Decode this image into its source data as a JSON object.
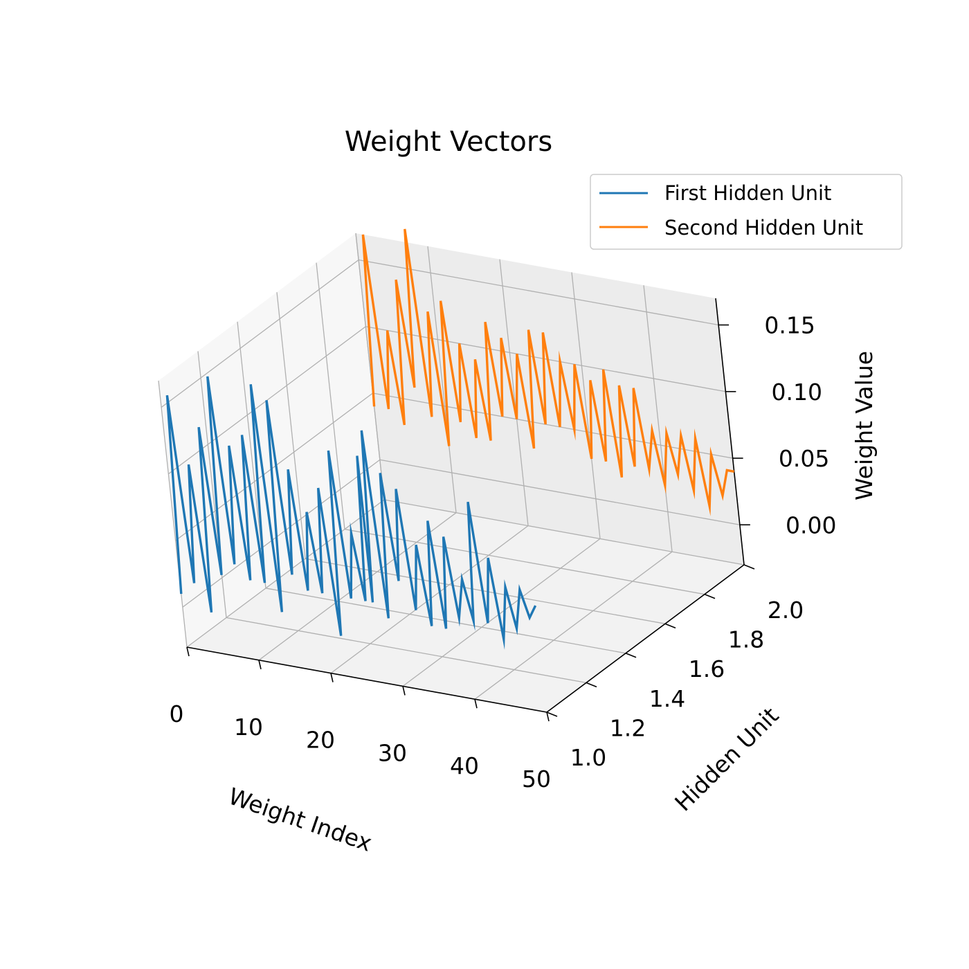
{
  "chart_data": {
    "type": "line",
    "projection": "3d",
    "title": "Weight Vectors",
    "xlabel": "Weight Index",
    "ylabel": "Hidden Unit",
    "zlabel": "Weight Value",
    "xlim": [
      0,
      50
    ],
    "ylim": [
      1.0,
      2.0
    ],
    "zlim": [
      -0.03,
      0.17
    ],
    "x_ticks": [
      "0",
      "10",
      "20",
      "30",
      "40",
      "50"
    ],
    "y_ticks": [
      "1.0",
      "1.2",
      "1.4",
      "1.6",
      "1.8",
      "2.0"
    ],
    "z_ticks": [
      "0.00",
      "0.05",
      "0.10",
      "0.15"
    ],
    "grid": true,
    "legend_position": "top-right",
    "series": [
      {
        "name": "First Hidden Unit",
        "color": "#1f77b4",
        "hidden_unit": 1.0,
        "x": [
          0,
          1,
          2,
          3,
          4,
          5,
          6,
          7,
          8,
          9,
          10,
          11,
          12,
          13,
          14,
          15,
          16,
          17,
          18,
          19,
          20,
          21,
          22,
          23,
          24,
          25,
          26,
          27,
          27,
          28,
          29,
          30,
          31,
          32,
          33,
          34,
          35,
          36,
          37,
          38,
          39,
          40,
          41,
          42,
          43,
          44,
          45,
          46,
          47,
          48,
          49,
          50
        ],
        "values": [
          0.01,
          0.16,
          0.02,
          0.11,
          0.0,
          0.14,
          0.03,
          0.18,
          0.04,
          0.13,
          0.03,
          0.14,
          0.03,
          0.18,
          0.01,
          0.17,
          0.04,
          0.12,
          0.03,
          0.09,
          0.03,
          0.11,
          0.0,
          0.14,
          0.03,
          0.08,
          0.03,
          0.14,
          0.03,
          0.16,
          0.02,
          0.13,
          0.05,
          0.12,
          0.03,
          0.08,
          0.02,
          0.1,
          0.02,
          0.09,
          0.03,
          0.06,
          0.03,
          0.12,
          0.03,
          0.08,
          0.02,
          0.06,
          0.03,
          0.06,
          0.04,
          0.05
        ]
      },
      {
        "name": "Second Hidden Unit",
        "color": "#ff7f0e",
        "hidden_unit": 2.0,
        "x": [
          0,
          1,
          2,
          3,
          4,
          5,
          6,
          7,
          8,
          9,
          10,
          11,
          12,
          13,
          14,
          15,
          16,
          17,
          18,
          19,
          20,
          21,
          22,
          23,
          24,
          25,
          26,
          27,
          28,
          29,
          30,
          31,
          32,
          33,
          34,
          35,
          36,
          37,
          38,
          39,
          40,
          41,
          42,
          43,
          44,
          45,
          46,
          47,
          48,
          49,
          50
        ],
        "values": [
          0.04,
          0.17,
          0.04,
          0.1,
          0.03,
          0.14,
          0.06,
          0.18,
          0.04,
          0.12,
          0.02,
          0.13,
          0.04,
          0.1,
          0.03,
          0.09,
          0.03,
          0.12,
          0.05,
          0.11,
          0.05,
          0.1,
          0.03,
          0.12,
          0.05,
          0.12,
          0.05,
          0.1,
          0.05,
          0.1,
          0.03,
          0.09,
          0.03,
          0.1,
          0.02,
          0.09,
          0.03,
          0.09,
          0.03,
          0.06,
          0.02,
          0.06,
          0.03,
          0.06,
          0.02,
          0.06,
          0.01,
          0.05,
          0.02,
          0.04,
          0.04
        ]
      }
    ]
  }
}
